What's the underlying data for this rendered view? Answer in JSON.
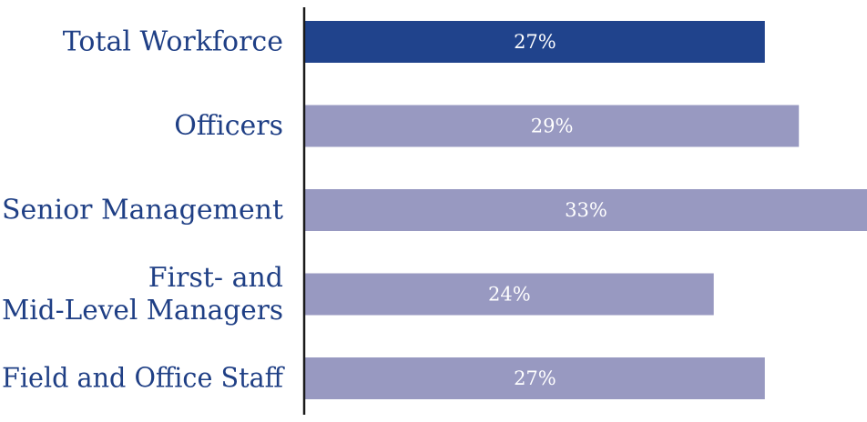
{
  "chart_data": {
    "type": "bar",
    "orientation": "horizontal",
    "categories": [
      [
        "Total Workforce"
      ],
      [
        "Officers"
      ],
      [
        "Senior Management"
      ],
      [
        "First- and",
        "Mid-Level Managers"
      ],
      [
        "Field and Office Staff"
      ]
    ],
    "values": [
      27,
      29,
      33,
      24,
      27
    ],
    "value_labels": [
      "27%",
      "29%",
      "33%",
      "24%",
      "27%"
    ],
    "value_unit": "%",
    "xlim": [
      0,
      33
    ],
    "highlight_index": 0,
    "colors": {
      "highlight": "#20438c",
      "default": "#9899c1",
      "axis": "#1a1a1a",
      "label": "#1f3f85",
      "value_text": "#ffffff"
    }
  }
}
